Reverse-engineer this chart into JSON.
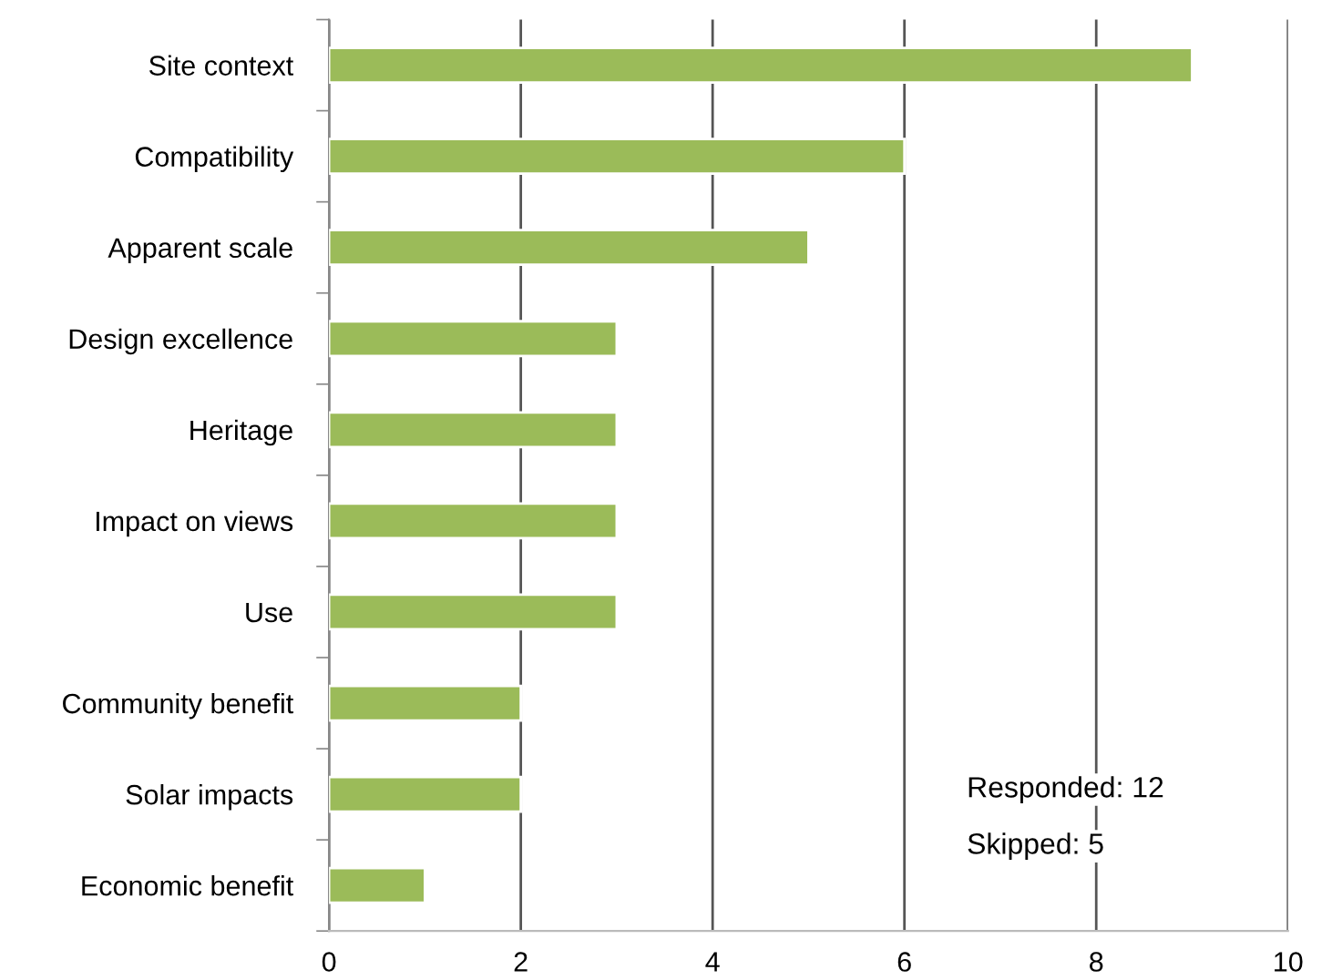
{
  "chart_data": {
    "type": "bar",
    "orientation": "horizontal",
    "categories": [
      "Site context",
      "Compatibility",
      "Apparent scale",
      "Design excellence",
      "Heritage",
      "Impact on views",
      "Use",
      "Community benefit",
      "Solar impacts",
      "Economic benefit"
    ],
    "values": [
      9,
      6,
      5,
      3,
      3,
      3,
      3,
      2,
      2,
      1
    ],
    "color": "#9bbb59",
    "xlim": [
      0,
      10
    ],
    "xticks": [
      0,
      2,
      4,
      6,
      8,
      10
    ],
    "grid": "x",
    "annotations": [
      "Responded: 12",
      "Skipped: 5"
    ]
  }
}
